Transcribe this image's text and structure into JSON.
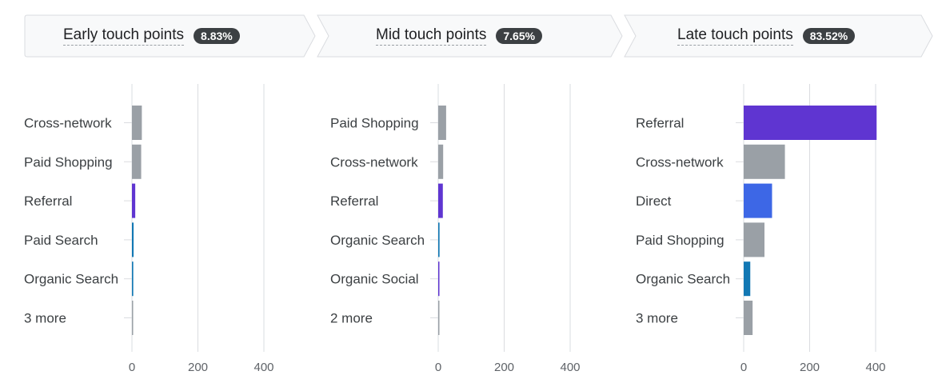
{
  "stages": [
    {
      "label": "Early touch points",
      "share": "8.83%"
    },
    {
      "label": "Mid touch points",
      "share": "7.65%"
    },
    {
      "label": "Late touch points",
      "share": "83.52%"
    }
  ],
  "colors": {
    "gray": "#9aa0a6",
    "purple": "#5f35d1",
    "blue": "#3d67e6",
    "teal": "#1278b4",
    "grid": "#dadce0",
    "stage_fill": "#f8f9fa",
    "stage_stroke": "#dadce0"
  },
  "chart_data": [
    {
      "type": "bar",
      "orientation": "horizontal",
      "categories": [
        "Cross-network",
        "Paid Shopping",
        "Referral",
        "Paid Search",
        "Organic Search",
        "3 more"
      ],
      "values": [
        30,
        28,
        10,
        5,
        4,
        2
      ],
      "bar_colors": [
        "gray",
        "gray",
        "purple",
        "teal",
        "teal",
        "gray"
      ],
      "xticks": [
        "0",
        "200",
        "400"
      ],
      "xlim": [
        0,
        400
      ]
    },
    {
      "type": "bar",
      "orientation": "horizontal",
      "categories": [
        "Paid Shopping",
        "Cross-network",
        "Referral",
        "Organic Search",
        "Organic Social",
        "2 more"
      ],
      "values": [
        24,
        15,
        14,
        4,
        3,
        2
      ],
      "bar_colors": [
        "gray",
        "gray",
        "purple",
        "teal",
        "purple",
        "gray"
      ],
      "xticks": [
        "0",
        "200",
        "400"
      ],
      "xlim": [
        0,
        400
      ]
    },
    {
      "type": "bar",
      "orientation": "horizontal",
      "categories": [
        "Referral",
        "Cross-network",
        "Direct",
        "Paid Shopping",
        "Organic Search",
        "3 more"
      ],
      "values": [
        403,
        125,
        86,
        63,
        20,
        27
      ],
      "bar_colors": [
        "purple",
        "gray",
        "blue",
        "gray",
        "teal",
        "gray"
      ],
      "xticks": [
        "0",
        "200",
        "400"
      ],
      "xlim": [
        0,
        400
      ]
    }
  ]
}
